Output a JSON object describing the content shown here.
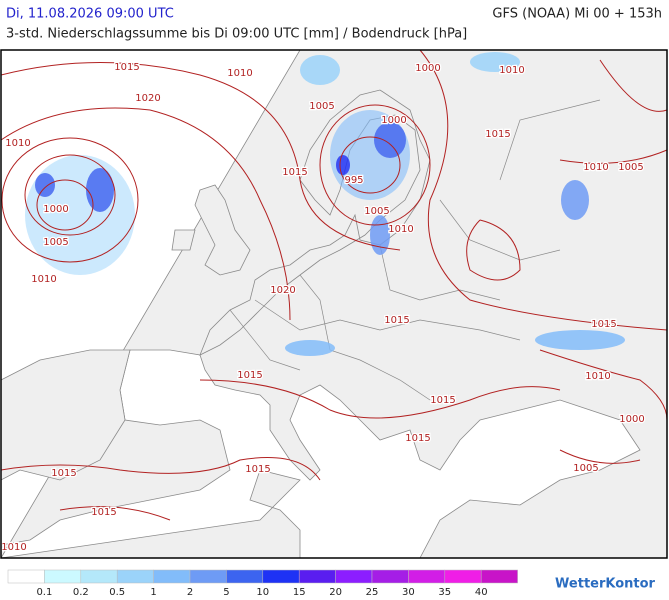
{
  "header": {
    "title": "Di, 11.08.2026 09:00 UTC",
    "subtitle": "3-std. Niederschlagssumme bis Di 09:00 UTC [mm] / Bodendruck [hPa]",
    "source": "GFS (NOAA) Mi 00 + 153h"
  },
  "map": {
    "isobar_labels": [
      "1015",
      "1010",
      "1000",
      "1010",
      "1020",
      "1005",
      "1000",
      "1015",
      "1010",
      "1010",
      "1005",
      "1015",
      "995",
      "1000",
      "1005",
      "1010",
      "1005",
      "1010",
      "1020",
      "1015",
      "1015",
      "1015",
      "1010",
      "1015",
      "1000",
      "1015",
      "1015",
      "1015",
      "1005",
      "1015",
      "1010"
    ],
    "isobar_color": "#b22222",
    "land_color": "#efefef",
    "border_color": "#8a8a8a"
  },
  "legend": {
    "colors": [
      "#ffffff",
      "#ccf9ff",
      "#b4e8fa",
      "#9bd3fa",
      "#82bcfa",
      "#6e9bf5",
      "#3c64f0",
      "#1e32f5",
      "#5a1ef0",
      "#8c1eff",
      "#a51ee6",
      "#d21ee6",
      "#f01ee6",
      "#c814c8"
    ],
    "labels": [
      "0.1",
      "0.2",
      "0.5",
      "1",
      "2",
      "5",
      "10",
      "15",
      "20",
      "25",
      "30",
      "35",
      "40"
    ]
  },
  "logo": "WetterKontor"
}
